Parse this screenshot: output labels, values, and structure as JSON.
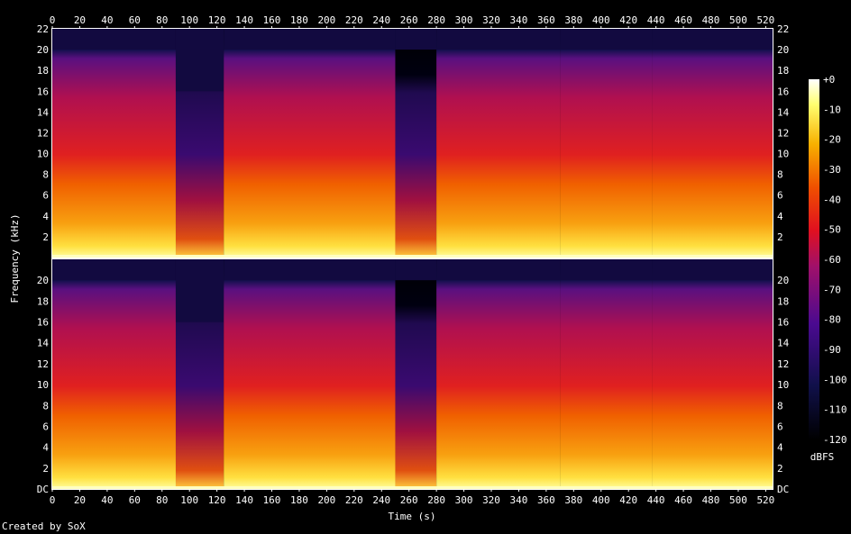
{
  "chart_data": {
    "type": "heatmap",
    "title": "",
    "xlabel": "Time (s)",
    "ylabel": "Frequency (kHz)",
    "xlim": [
      0,
      525
    ],
    "ylim": [
      0,
      22
    ],
    "x_ticks": [
      "0",
      "20",
      "40",
      "60",
      "80",
      "100",
      "120",
      "140",
      "160",
      "180",
      "200",
      "220",
      "240",
      "260",
      "280",
      "300",
      "320",
      "340",
      "360",
      "380",
      "400",
      "420",
      "440",
      "460",
      "480",
      "500",
      "520"
    ],
    "y_ticks_upper": [
      "2",
      "4",
      "6",
      "8",
      "10",
      "12",
      "14",
      "16",
      "18",
      "20",
      "22"
    ],
    "y_ticks_lower": [
      "DC",
      "2",
      "4",
      "6",
      "8",
      "10",
      "12",
      "14",
      "16",
      "18",
      "20"
    ],
    "channels": 2,
    "colorbar": {
      "label": "dBFS",
      "ticks": [
        "+0",
        "-10",
        "-20",
        "-30",
        "-40",
        "-50",
        "-60",
        "-70",
        "-80",
        "-90",
        "-100",
        "-110",
        "-120"
      ],
      "range": [
        -120,
        0
      ]
    },
    "segments": [
      {
        "start": 0,
        "end": 90,
        "level": "loud",
        "cutoff_khz": 20
      },
      {
        "start": 90,
        "end": 125,
        "level": "quiet",
        "cutoff_khz": 16
      },
      {
        "start": 125,
        "end": 250,
        "level": "loud",
        "cutoff_khz": 20
      },
      {
        "start": 250,
        "end": 280,
        "level": "quiet",
        "cutoff_khz": 20
      },
      {
        "start": 280,
        "end": 370,
        "level": "loud",
        "cutoff_khz": 20
      },
      {
        "start": 370,
        "end": 437,
        "level": "loud",
        "cutoff_khz": 20
      },
      {
        "start": 437,
        "end": 525,
        "level": "loud",
        "cutoff_khz": 20
      }
    ],
    "colors": {
      "low": "#000000",
      "mid_low": "#3a0a8a",
      "mid": "#e01020",
      "mid_high": "#f07000",
      "high": "#ffff80",
      "max": "#ffffff"
    }
  },
  "credit": "Created by SoX"
}
